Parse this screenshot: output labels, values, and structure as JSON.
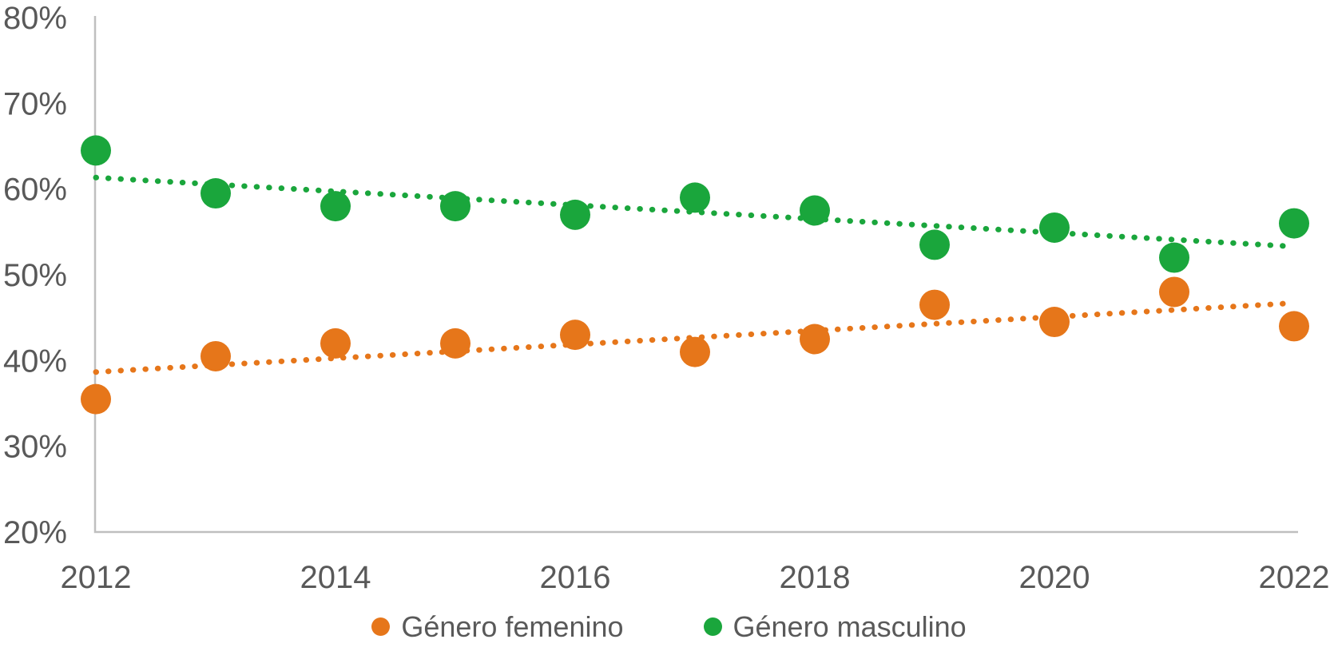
{
  "chart_data": {
    "type": "scatter",
    "title": "",
    "xlabel": "",
    "ylabel": "",
    "x": [
      2012,
      2013,
      2014,
      2015,
      2016,
      2017,
      2018,
      2019,
      2020,
      2021,
      2022
    ],
    "series": [
      {
        "name": "Género femenino",
        "color": "#E6761A",
        "values": [
          35.5,
          40.5,
          42,
          42,
          43,
          41,
          42.5,
          46.5,
          44.5,
          48,
          44
        ],
        "trendline": "dotted-linear"
      },
      {
        "name": "Género masculino",
        "color": "#1AA63C",
        "values": [
          64.5,
          59.5,
          58,
          58,
          57,
          59,
          57.5,
          53.5,
          55.5,
          52,
          56
        ],
        "trendline": "dotted-linear"
      }
    ],
    "xlim": [
      2012,
      2022
    ],
    "ylim": [
      20,
      80
    ],
    "x_tick_labels": [
      "2012",
      "2014",
      "2016",
      "2018",
      "2020",
      "2022"
    ],
    "y_tick_labels": [
      "80%",
      "70%",
      "60%",
      "50%",
      "40%",
      "30%",
      "20%"
    ],
    "grid": false,
    "legend_position": "bottom",
    "axis_color": "#BFBFBF",
    "text_color": "#595959"
  }
}
